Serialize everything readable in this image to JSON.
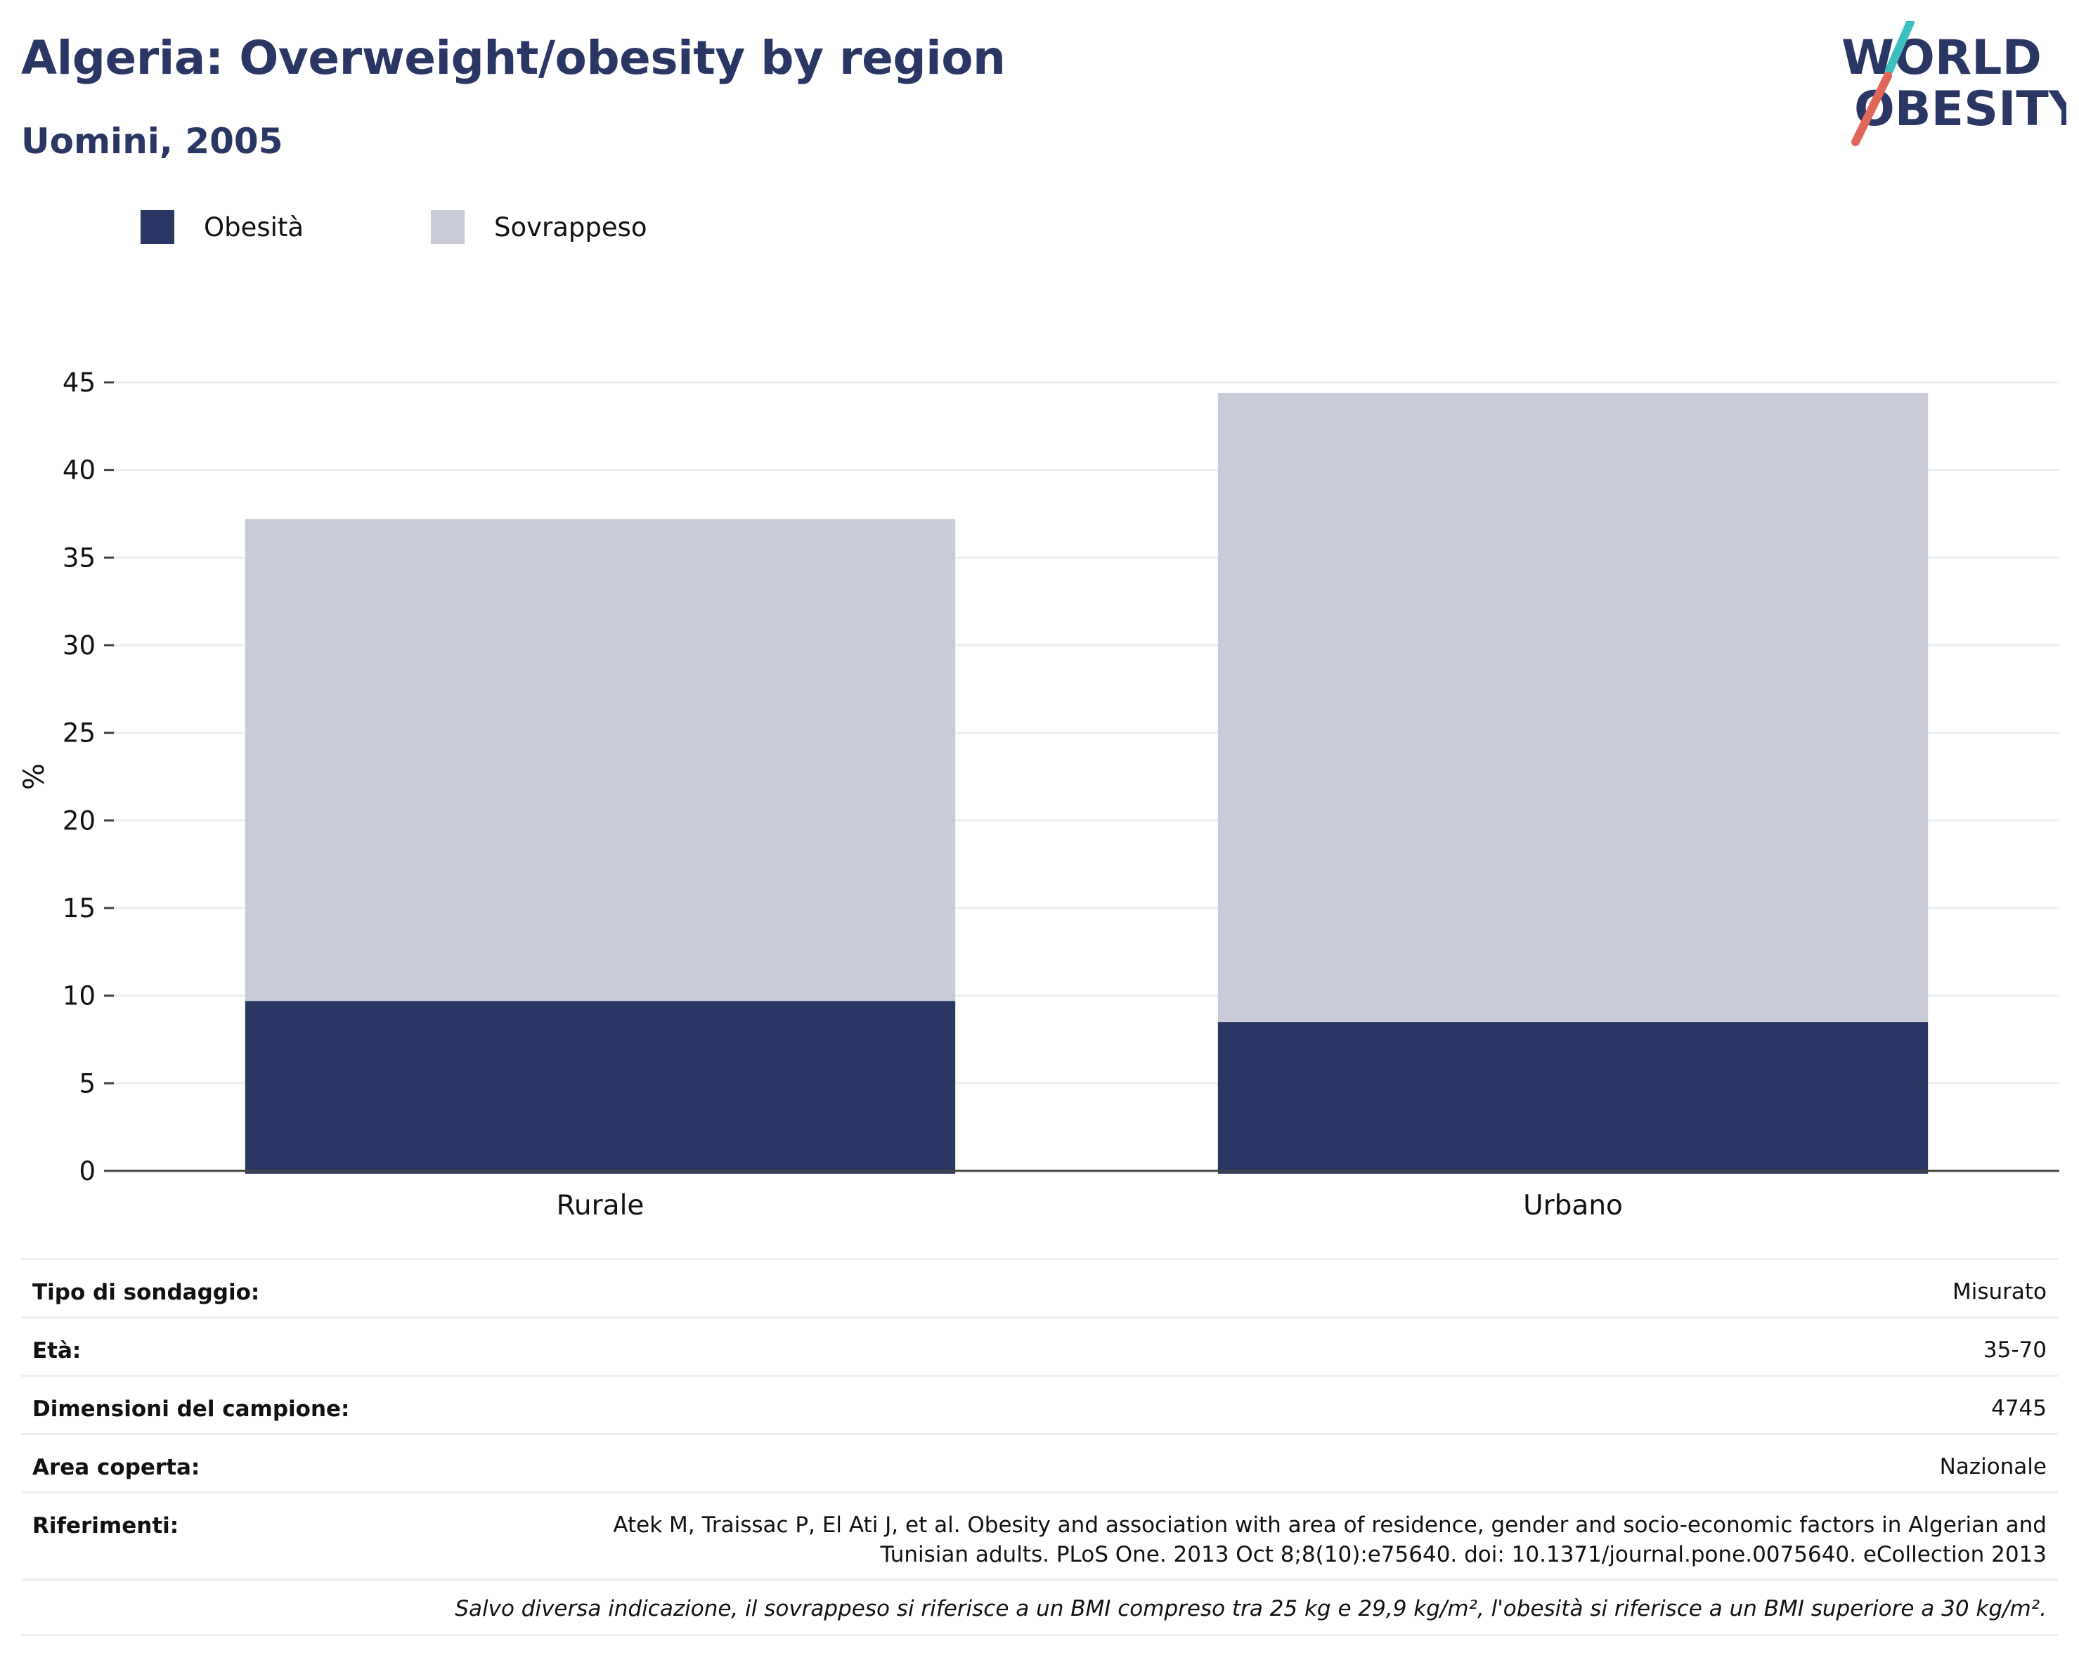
{
  "header": {
    "title": "Algeria: Overweight/obesity by region",
    "subtitle": "Uomini, 2005"
  },
  "logo": {
    "line1": "WORLD",
    "line2": "OBESITY",
    "accent_teal": "#3bbfbf",
    "accent_coral": "#e0675a"
  },
  "colors": {
    "obesity": "#2a3664",
    "overweight": "#c9ccd8",
    "grid": "#eceef2",
    "axis": "#444444",
    "title": "#2a3664"
  },
  "chart_data": {
    "type": "bar",
    "stacked": true,
    "categories": [
      "Rurale",
      "Urbano"
    ],
    "series": [
      {
        "name": "Obesità",
        "color": "#2a3664",
        "values": [
          9.7,
          8.5
        ]
      },
      {
        "name": "Sovrappeso",
        "color": "#c9ccd8",
        "values": [
          27.5,
          35.9
        ]
      }
    ],
    "ylabel": "%",
    "xlabel": "",
    "ylim": [
      0,
      45
    ],
    "yticks": [
      0,
      5,
      10,
      15,
      20,
      25,
      30,
      35,
      40,
      45
    ],
    "grid": true,
    "legend_position": "top-left"
  },
  "details": [
    {
      "label": "Tipo di sondaggio:",
      "value": "Misurato"
    },
    {
      "label": "Età:",
      "value": "35-70"
    },
    {
      "label": "Dimensioni del campione:",
      "value": "4745"
    },
    {
      "label": "Area coperta:",
      "value": "Nazionale"
    },
    {
      "label": "Riferimenti:",
      "value_line1": "Atek M, Traissac P, El Ati J, et al. Obesity and association with area of residence, gender and socio-economic factors in Algerian and",
      "value_line2": "Tunisian adults. PLoS One. 2013 Oct 8;8(10):e75640. doi: 10.1371/journal.pone.0075640. eCollection 2013"
    }
  ],
  "note": "Salvo diversa indicazione, il sovrappeso si riferisce a un BMI compreso tra 25 kg e 29,9 kg/m², l'obesità si riferisce a un BMI superiore a 30 kg/m²."
}
